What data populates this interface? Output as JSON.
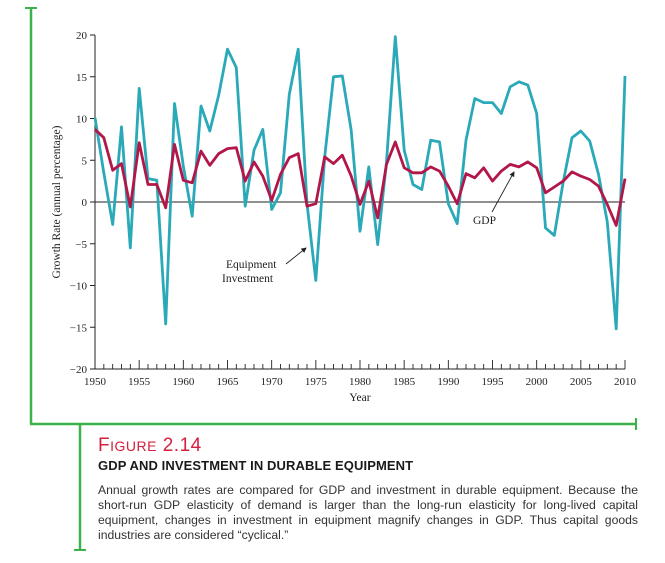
{
  "figure": {
    "number_prefix": "Figure",
    "number": "2.14",
    "title": "GDP AND INVESTMENT IN DURABLE EQUIPMENT",
    "caption": "Annual growth rates are compared for GDP and investment in durable equipment. Because the short-run GDP elasticity of demand is larger than the long-run elasticity for long-lived capital equipment, changes in investment in equipment magnify changes in GDP. Thus capital goods industries are considered “cyclical.”"
  },
  "colors": {
    "frame": "#3cb24a",
    "gdp": "#b3174a",
    "equipment": "#2aa9b8",
    "caption_accent": "#d3203f"
  },
  "chart_data": {
    "type": "line",
    "xlabel": "Year",
    "ylabel": "Growth Rate (annual percentage)",
    "xlim": [
      1950,
      2010
    ],
    "ylim": [
      -20,
      20
    ],
    "x_ticks": [
      1950,
      1955,
      1960,
      1965,
      1970,
      1975,
      1980,
      1985,
      1990,
      1995,
      2000,
      2005,
      2010
    ],
    "y_ticks": [
      20,
      15,
      10,
      5,
      0,
      -5,
      -10,
      -15,
      -20
    ],
    "grid": false,
    "annotations": {
      "gdp": "GDP",
      "equipment_line1": "Equipment",
      "equipment_line2": "Investment"
    },
    "series": [
      {
        "name": "GDP",
        "color": "#b3174a",
        "x": [
          1950,
          1951,
          1952,
          1953,
          1954,
          1955,
          1956,
          1957,
          1958,
          1959,
          1960,
          1961,
          1962,
          1963,
          1964,
          1965,
          1966,
          1967,
          1968,
          1969,
          1970,
          1971,
          1972,
          1973,
          1974,
          1975,
          1976,
          1977,
          1978,
          1979,
          1980,
          1981,
          1982,
          1983,
          1984,
          1985,
          1986,
          1987,
          1988,
          1989,
          1990,
          1991,
          1992,
          1993,
          1994,
          1995,
          1996,
          1997,
          1998,
          1999,
          2000,
          2001,
          2002,
          2003,
          2004,
          2005,
          2006,
          2007,
          2008,
          2009,
          2010
        ],
        "y": [
          8.7,
          7.7,
          3.8,
          4.6,
          -0.6,
          7.1,
          2.1,
          2.1,
          -0.7,
          6.9,
          2.6,
          2.3,
          6.1,
          4.4,
          5.8,
          6.4,
          6.5,
          2.5,
          4.8,
          3.1,
          0.2,
          3.3,
          5.3,
          5.8,
          -0.5,
          -0.2,
          5.4,
          4.6,
          5.6,
          3.1,
          -0.3,
          2.5,
          -1.9,
          4.5,
          7.2,
          4.1,
          3.5,
          3.5,
          4.2,
          3.7,
          1.9,
          -0.2,
          3.4,
          2.9,
          4.1,
          2.5,
          3.7,
          4.5,
          4.2,
          4.8,
          4.1,
          1.1,
          1.8,
          2.5,
          3.6,
          3.1,
          2.7,
          1.9,
          -0.3,
          -2.8,
          2.8
        ]
      },
      {
        "name": "Equipment Investment",
        "color": "#2aa9b8",
        "x": [
          1950,
          1951,
          1952,
          1953,
          1954,
          1955,
          1956,
          1957,
          1958,
          1959,
          1960,
          1961,
          1962,
          1963,
          1964,
          1965,
          1966,
          1967,
          1968,
          1969,
          1970,
          1971,
          1972,
          1973,
          1974,
          1975,
          1976,
          1977,
          1978,
          1979,
          1980,
          1981,
          1982,
          1983,
          1984,
          1985,
          1986,
          1987,
          1988,
          1989,
          1990,
          1991,
          1992,
          1993,
          1994,
          1995,
          1996,
          1997,
          1998,
          1999,
          2000,
          2001,
          2002,
          2003,
          2004,
          2005,
          2006,
          2007,
          2008,
          2009,
          2010
        ],
        "y": [
          10.1,
          3.5,
          -2.7,
          9.0,
          -5.5,
          13.6,
          2.8,
          2.6,
          -14.6,
          11.8,
          4.3,
          -1.7,
          11.5,
          8.5,
          12.8,
          18.3,
          16.1,
          -0.5,
          6.2,
          8.7,
          -0.9,
          1.1,
          12.9,
          18.3,
          -0.2,
          -9.4,
          5.4,
          15.0,
          15.1,
          8.6,
          -3.5,
          4.2,
          -5.1,
          4.8,
          19.8,
          6.2,
          2.1,
          1.5,
          7.4,
          7.2,
          -0.2,
          -2.6,
          7.4,
          12.4,
          11.9,
          11.9,
          10.6,
          13.8,
          14.4,
          14.0,
          10.6,
          -3.1,
          -4.0,
          2.4,
          7.7,
          8.5,
          7.3,
          3.3,
          -2.4,
          -15.2,
          15.1
        ]
      }
    ]
  }
}
